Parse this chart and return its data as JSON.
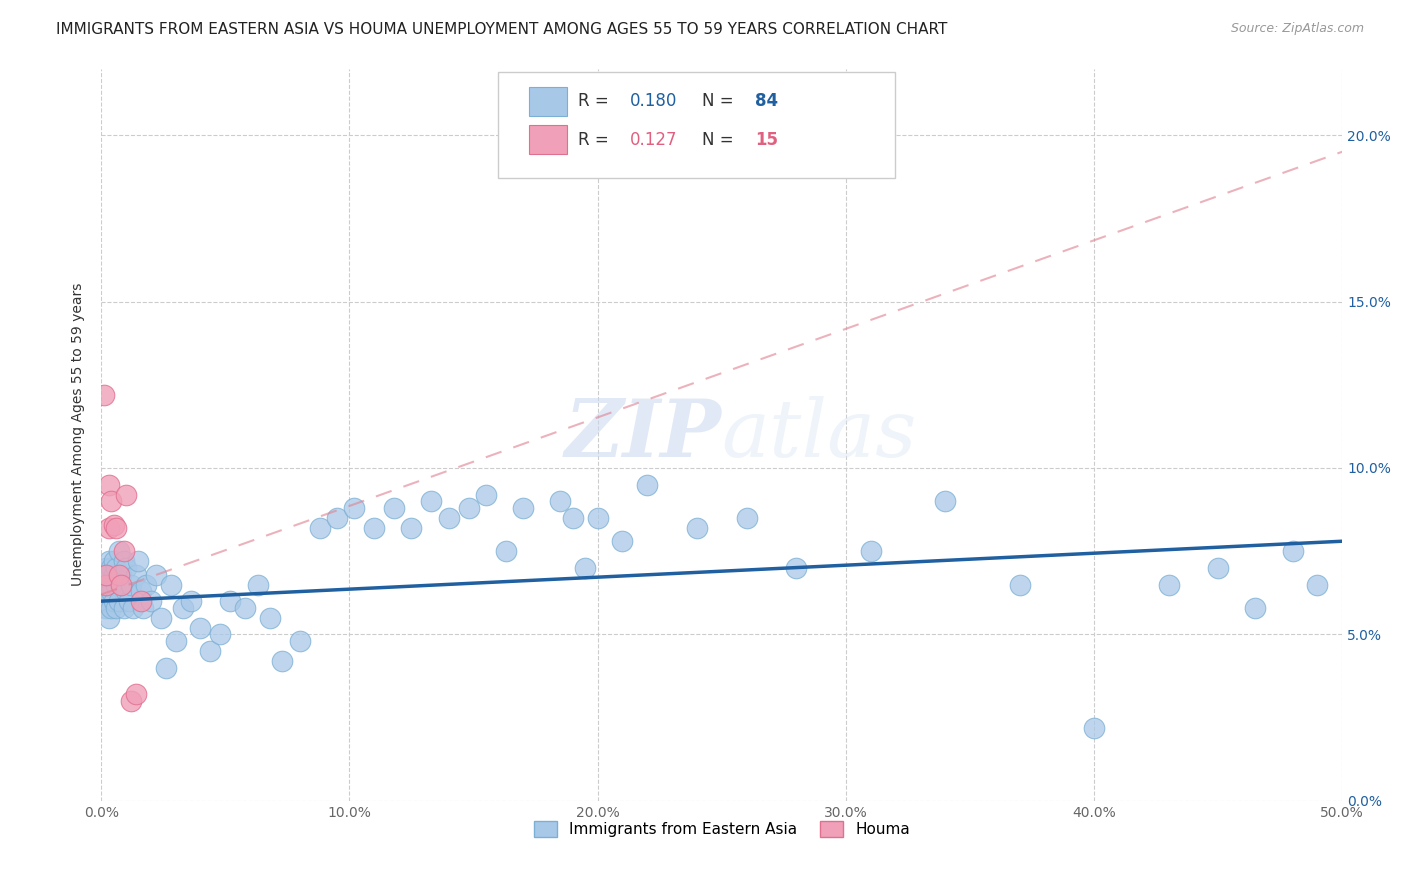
{
  "title": "IMMIGRANTS FROM EASTERN ASIA VS HOUMA UNEMPLOYMENT AMONG AGES 55 TO 59 YEARS CORRELATION CHART",
  "source": "Source: ZipAtlas.com",
  "ylabel": "Unemployment Among Ages 55 to 59 years",
  "xlim": [
    0,
    0.5
  ],
  "ylim": [
    0,
    0.22
  ],
  "xticks": [
    0.0,
    0.1,
    0.2,
    0.3,
    0.4,
    0.5
  ],
  "xticklabels": [
    "0.0%",
    "10.0%",
    "20.0%",
    "30.0%",
    "40.0%",
    "50.0%"
  ],
  "yticks": [
    0.0,
    0.05,
    0.1,
    0.15,
    0.2
  ],
  "yticklabels": [
    "0.0%",
    "5.0%",
    "10.0%",
    "15.0%",
    "20.0%"
  ],
  "blue_R": 0.18,
  "blue_N": 84,
  "pink_R": 0.127,
  "pink_N": 15,
  "blue_color": "#a8c8e8",
  "blue_edge_color": "#7bafd4",
  "blue_line_color": "#2060a0",
  "pink_color": "#f0a0b8",
  "pink_edge_color": "#e07090",
  "pink_line_color": "#e06080",
  "legend_label_blue": "Immigrants from Eastern Asia",
  "legend_label_pink": "Houma",
  "watermark_zip": "ZIP",
  "watermark_atlas": "atlas",
  "grid_color": "#cccccc",
  "background_color": "#ffffff",
  "title_fontsize": 11,
  "axis_label_fontsize": 10,
  "tick_fontsize": 10,
  "legend_fontsize": 12,
  "source_fontsize": 9,
  "blue_scatter_x": [
    0.001,
    0.001,
    0.002,
    0.002,
    0.002,
    0.002,
    0.003,
    0.003,
    0.003,
    0.003,
    0.004,
    0.004,
    0.004,
    0.004,
    0.005,
    0.005,
    0.005,
    0.006,
    0.006,
    0.006,
    0.007,
    0.007,
    0.008,
    0.008,
    0.009,
    0.009,
    0.01,
    0.01,
    0.011,
    0.012,
    0.013,
    0.014,
    0.015,
    0.016,
    0.017,
    0.018,
    0.02,
    0.022,
    0.024,
    0.026,
    0.028,
    0.03,
    0.033,
    0.036,
    0.04,
    0.044,
    0.048,
    0.052,
    0.058,
    0.063,
    0.068,
    0.073,
    0.08,
    0.088,
    0.095,
    0.102,
    0.11,
    0.118,
    0.125,
    0.133,
    0.14,
    0.148,
    0.155,
    0.163,
    0.17,
    0.178,
    0.185,
    0.19,
    0.195,
    0.2,
    0.21,
    0.22,
    0.24,
    0.26,
    0.28,
    0.31,
    0.34,
    0.37,
    0.4,
    0.43,
    0.45,
    0.465,
    0.48,
    0.49
  ],
  "blue_scatter_y": [
    0.063,
    0.068,
    0.058,
    0.065,
    0.07,
    0.06,
    0.062,
    0.068,
    0.072,
    0.055,
    0.065,
    0.07,
    0.058,
    0.063,
    0.06,
    0.068,
    0.072,
    0.058,
    0.065,
    0.07,
    0.075,
    0.06,
    0.065,
    0.068,
    0.058,
    0.072,
    0.063,
    0.07,
    0.06,
    0.065,
    0.058,
    0.068,
    0.072,
    0.063,
    0.058,
    0.065,
    0.06,
    0.068,
    0.055,
    0.04,
    0.065,
    0.048,
    0.058,
    0.06,
    0.052,
    0.045,
    0.05,
    0.06,
    0.058,
    0.065,
    0.055,
    0.042,
    0.048,
    0.082,
    0.085,
    0.088,
    0.082,
    0.088,
    0.082,
    0.09,
    0.085,
    0.088,
    0.092,
    0.075,
    0.088,
    0.07,
    0.09,
    0.085,
    0.07,
    0.085,
    0.078,
    0.095,
    0.082,
    0.085,
    0.07,
    0.075,
    0.09,
    0.065,
    0.022,
    0.065,
    0.07,
    0.058,
    0.075,
    0.065
  ],
  "pink_scatter_x": [
    0.001,
    0.002,
    0.002,
    0.003,
    0.003,
    0.004,
    0.005,
    0.006,
    0.007,
    0.008,
    0.009,
    0.01,
    0.012,
    0.014,
    0.016
  ],
  "pink_scatter_y": [
    0.122,
    0.065,
    0.068,
    0.082,
    0.095,
    0.09,
    0.083,
    0.082,
    0.068,
    0.065,
    0.075,
    0.092,
    0.03,
    0.032,
    0.06
  ],
  "blue_trend_x0": 0.0,
  "blue_trend_x1": 0.5,
  "blue_trend_y0": 0.06,
  "blue_trend_y1": 0.078,
  "pink_trend_x0": 0.0,
  "pink_trend_x1": 0.5,
  "pink_trend_y0": 0.062,
  "pink_trend_y1": 0.195
}
